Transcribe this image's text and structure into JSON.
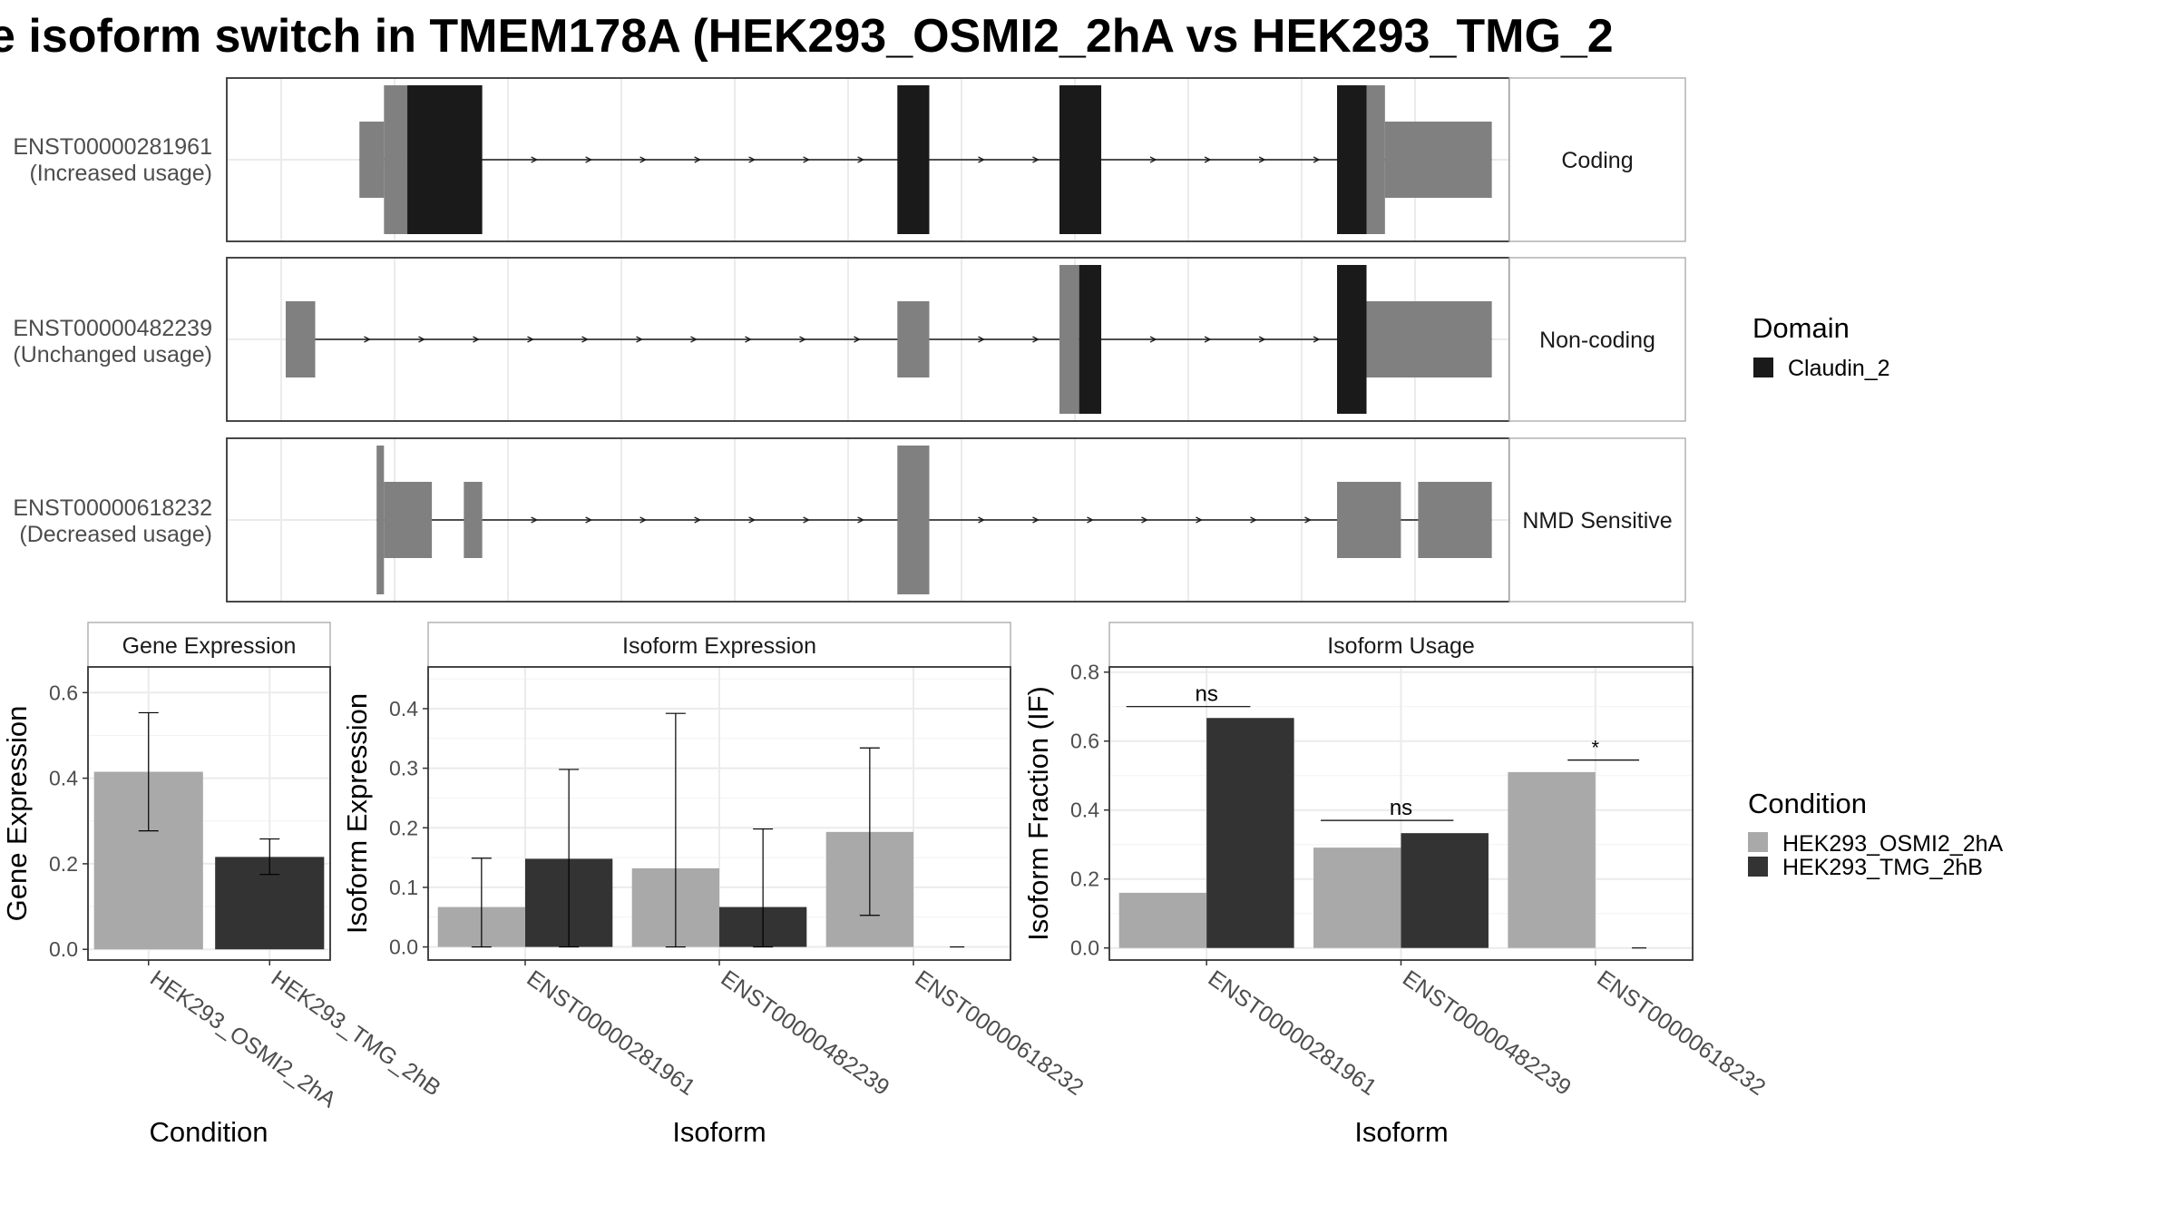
{
  "title": "e isoform switch in TMEM178A (HEK293_OSMI2_2hA vs HEK293_TMG_2",
  "colors": {
    "claudin": "#1a1a1a",
    "utr": "#808080",
    "cond_a": "#a9a9a9",
    "cond_b": "#333333",
    "panel_border": "#333333",
    "grid": "#ebebeb",
    "strip_border": "#b3b3b3"
  },
  "structure": {
    "tracks": [
      {
        "id": "ENST00000281961",
        "usage": "(Increased usage)",
        "category": "Coding",
        "exons": [
          {
            "start": 0.108,
            "end": 0.128,
            "kind": "utr"
          },
          {
            "start": 0.128,
            "end": 0.147,
            "kind": "cds"
          },
          {
            "start": 0.147,
            "end": 0.208,
            "kind": "domain"
          },
          {
            "start": 0.546,
            "end": 0.572,
            "kind": "domain"
          },
          {
            "start": 0.678,
            "end": 0.712,
            "kind": "domain"
          },
          {
            "start": 0.904,
            "end": 0.928,
            "kind": "domain"
          },
          {
            "start": 0.928,
            "end": 0.943,
            "kind": "cds"
          },
          {
            "start": 0.943,
            "end": 1.03,
            "kind": "utr"
          }
        ]
      },
      {
        "id": "ENST00000482239",
        "usage": "(Unchanged usage)",
        "category": "Non-coding",
        "exons": [
          {
            "start": 0.048,
            "end": 0.072,
            "kind": "utr"
          },
          {
            "start": 0.546,
            "end": 0.572,
            "kind": "utr"
          },
          {
            "start": 0.678,
            "end": 0.694,
            "kind": "cds"
          },
          {
            "start": 0.694,
            "end": 0.712,
            "kind": "domain"
          },
          {
            "start": 0.904,
            "end": 0.928,
            "kind": "domain"
          },
          {
            "start": 0.928,
            "end": 1.03,
            "kind": "utr"
          }
        ]
      },
      {
        "id": "ENST00000618232",
        "usage": "(Decreased usage)",
        "category": "NMD Sensitive",
        "exons": [
          {
            "start": 0.122,
            "end": 0.128,
            "kind": "cds"
          },
          {
            "start": 0.128,
            "end": 0.167,
            "kind": "utr"
          },
          {
            "start": 0.193,
            "end": 0.208,
            "kind": "utr"
          },
          {
            "start": 0.546,
            "end": 0.572,
            "kind": "cds"
          },
          {
            "start": 0.904,
            "end": 0.956,
            "kind": "utr"
          },
          {
            "start": 0.97,
            "end": 1.03,
            "kind": "utr"
          }
        ]
      }
    ],
    "domain_legend": {
      "title": "Domain",
      "items": [
        "Claudin_2"
      ]
    }
  },
  "chart_data": [
    {
      "type": "bar",
      "panel": "Gene Expression",
      "xlabel": "Condition",
      "ylabel": "Gene Expression",
      "categories": [
        "HEK293_OSMI2_2hA",
        "HEK293_TMG_2hB"
      ],
      "values": [
        0.415,
        0.216
      ],
      "errors": [
        [
          0.277,
          0.553
        ],
        [
          0.175,
          0.258
        ]
      ],
      "ylim": [
        -0.025,
        0.66
      ],
      "yticks": [
        "0.0",
        "0.2",
        "0.4",
        "0.6"
      ]
    },
    {
      "type": "bar",
      "panel": "Isoform Expression",
      "xlabel": "Isoform",
      "ylabel": "Isoform Expression",
      "categories": [
        "ENST00000281961",
        "ENST00000482239",
        "ENST00000618232"
      ],
      "series": [
        {
          "name": "HEK293_OSMI2_2hA",
          "values": [
            0.067,
            0.132,
            0.193
          ],
          "errors": [
            [
              0.0,
              0.149
            ],
            [
              0.0,
              0.392
            ],
            [
              0.053,
              0.334
            ]
          ]
        },
        {
          "name": "HEK293_TMG_2hB",
          "values": [
            0.148,
            0.067,
            0.0
          ],
          "errors": [
            [
              0.0,
              0.298
            ],
            [
              0.0,
              0.198
            ],
            [
              0.0,
              0.0
            ]
          ]
        }
      ],
      "ylim": [
        -0.022,
        0.47
      ],
      "yticks": [
        "0.0",
        "0.1",
        "0.2",
        "0.3",
        "0.4"
      ]
    },
    {
      "type": "bar",
      "panel": "Isoform Usage",
      "xlabel": "Isoform",
      "ylabel": "Isoform Fraction (IF)",
      "categories": [
        "ENST00000281961",
        "ENST00000482239",
        "ENST00000618232"
      ],
      "series": [
        {
          "name": "HEK293_OSMI2_2hA",
          "values": [
            0.16,
            0.291,
            0.51
          ]
        },
        {
          "name": "HEK293_TMG_2hB",
          "values": [
            0.667,
            0.333,
            0.0
          ]
        }
      ],
      "annotations": [
        "ns",
        "ns",
        "*"
      ],
      "annotation_y": [
        0.7,
        0.37,
        0.545
      ],
      "ylim": [
        -0.035,
        0.815
      ],
      "yticks": [
        "0.0",
        "0.2",
        "0.4",
        "0.6",
        "0.8"
      ]
    }
  ],
  "condition_legend": {
    "title": "Condition",
    "items": [
      "HEK293_OSMI2_2hA",
      "HEK293_TMG_2hB"
    ]
  }
}
